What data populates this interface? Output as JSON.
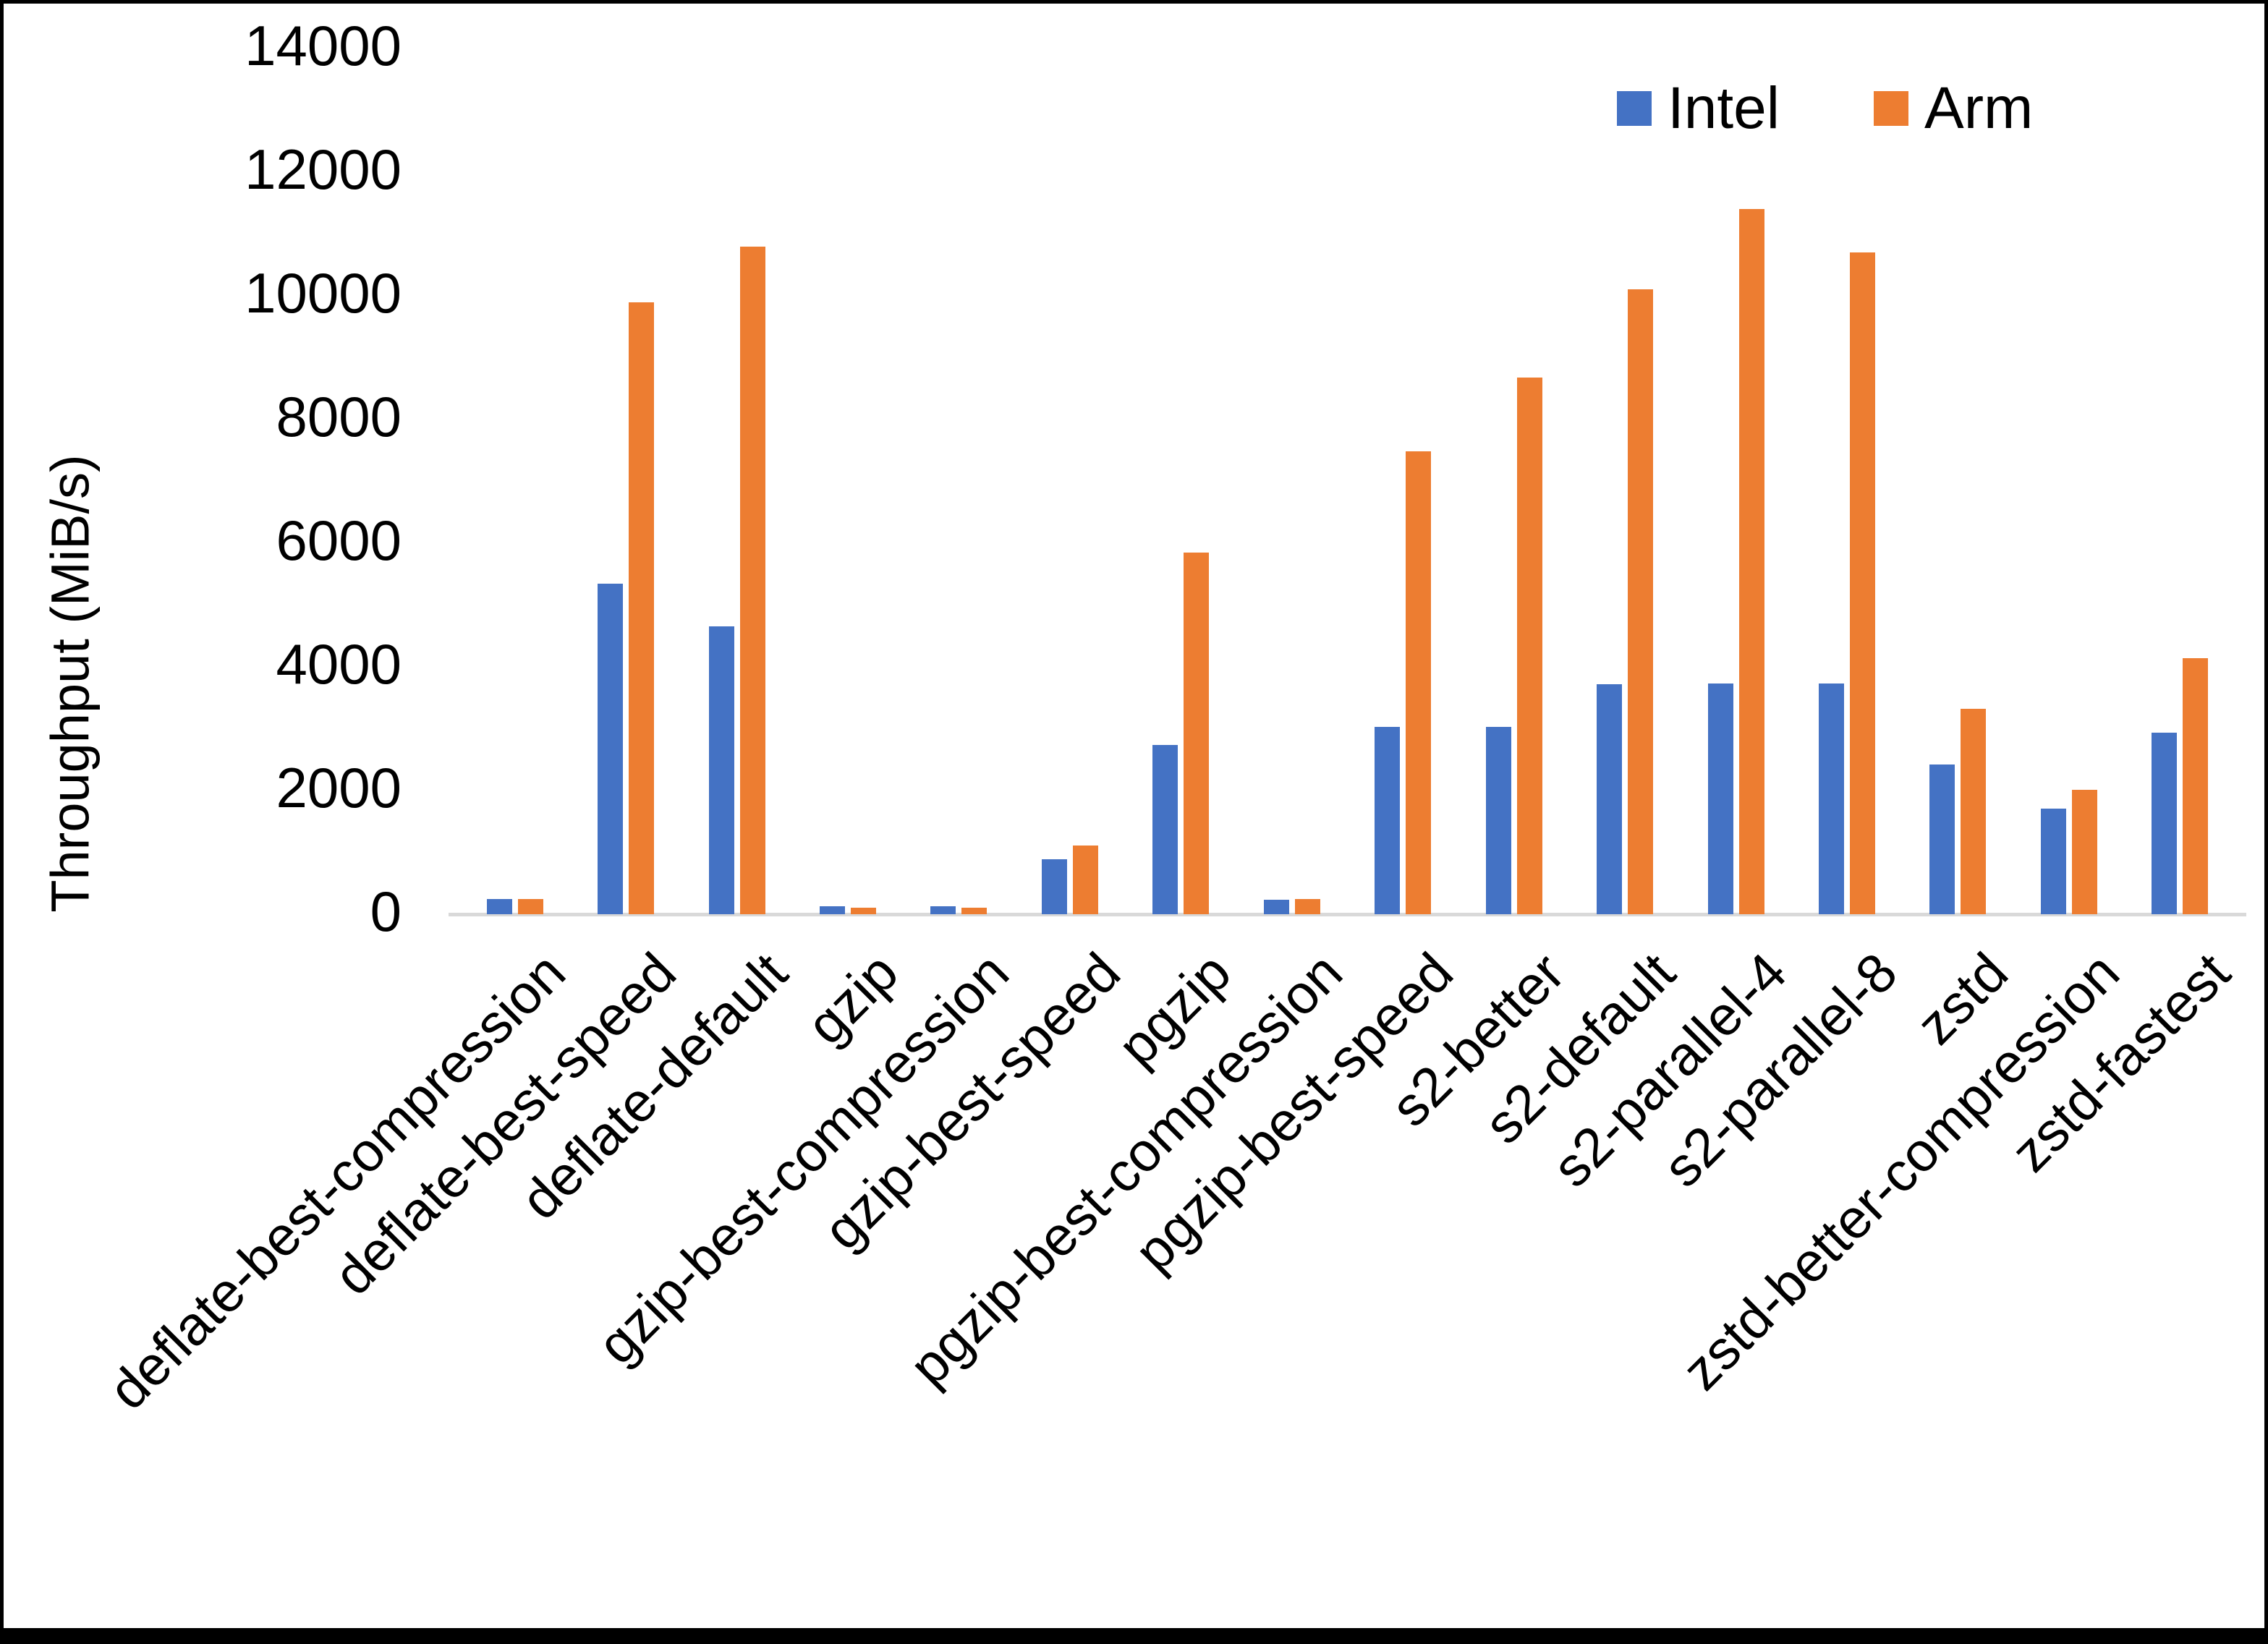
{
  "chart_data": {
    "type": "bar",
    "title": "",
    "ylabel": "Throughput (MiB/s)",
    "xlabel": "",
    "ylim": [
      0,
      14000
    ],
    "yticks": [
      0,
      2000,
      4000,
      6000,
      8000,
      10000,
      12000,
      14000
    ],
    "grid": false,
    "legend_position": "top-right",
    "background": "#FFFFFF",
    "text_color": "#000000",
    "axis_line_color": "#D9D9D9",
    "categories": [
      "deflate-best-compression",
      "deflate-best-speed",
      "deflate-default",
      "gzip",
      "gzip-best-compression",
      "gzip-best-speed",
      "pgzip",
      "pgzip-best-compression",
      "pgzip-best-speed",
      "s2-better",
      "s2-default",
      "s2-parallel-4",
      "s2-parallel-8",
      "zstd",
      "zstd-better-compression",
      "zstd-fastest"
    ],
    "series": [
      {
        "name": "Intel",
        "color": "#4472C4",
        "values": [
          250,
          5350,
          4650,
          130,
          130,
          890,
          2740,
          230,
          3030,
          3030,
          3720,
          3730,
          3730,
          2420,
          1710,
          2930
        ]
      },
      {
        "name": "Arm",
        "color": "#ED7D31",
        "values": [
          250,
          9900,
          10800,
          110,
          110,
          1110,
          5850,
          240,
          7480,
          8680,
          10100,
          11400,
          10700,
          3320,
          2010,
          4140
        ]
      }
    ]
  }
}
